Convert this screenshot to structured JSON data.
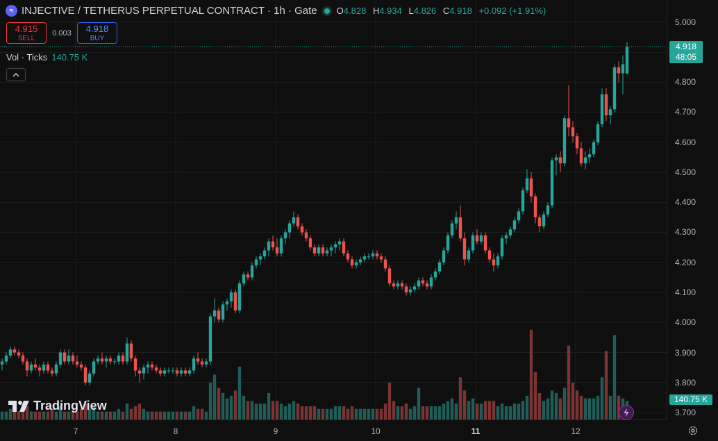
{
  "header": {
    "title": "INJECTIVE / TETHERUS PERPETUAL CONTRACT · 1h · Gate",
    "o_label": "O",
    "o": "4.828",
    "h_label": "H",
    "h": "4.934",
    "l_label": "L",
    "l": "4.826",
    "c_label": "C",
    "c": "4.918",
    "change": "+0.092 (+1.91%)"
  },
  "trade": {
    "sell_price": "4.915",
    "sell_label": "SELL",
    "spread": "0.003",
    "buy_price": "4.918",
    "buy_label": "BUY"
  },
  "volume": {
    "label": "Vol · Ticks",
    "value": "140.75 K"
  },
  "price_tag": {
    "price": "4.918",
    "countdown": "48:05"
  },
  "volume_tag": "140.75 K",
  "y_axis": [
    "5.000",
    "4.900",
    "4.800",
    "4.700",
    "4.600",
    "4.500",
    "4.400",
    "4.300",
    "4.200",
    "4.100",
    "4.000",
    "3.900",
    "3.800",
    "3.700"
  ],
  "x_axis": [
    {
      "label": "7",
      "bold": false
    },
    {
      "label": "8",
      "bold": false
    },
    {
      "label": "9",
      "bold": false
    },
    {
      "label": "10",
      "bold": false
    },
    {
      "label": "11",
      "bold": true
    },
    {
      "label": "12",
      "bold": false
    }
  ],
  "logo": "TradingView",
  "colors": {
    "up": "#26a69a",
    "down": "#ef5350",
    "up_vol": "#1f5e58",
    "down_vol": "#7a3434",
    "bg": "#0f0f0f",
    "grid": "#1e1e1e"
  },
  "chart_data": {
    "type": "candlestick",
    "interval": "1h",
    "ylim": [
      3.66,
      5.04
    ],
    "price_line": 4.918,
    "candles": [
      [
        3.86,
        3.88,
        3.84,
        3.87,
        0.3
      ],
      [
        3.87,
        3.9,
        3.86,
        3.89,
        0.3
      ],
      [
        3.89,
        3.92,
        3.88,
        3.91,
        0.4
      ],
      [
        3.91,
        3.92,
        3.89,
        3.9,
        0.3
      ],
      [
        3.9,
        3.91,
        3.88,
        3.89,
        0.3
      ],
      [
        3.89,
        3.9,
        3.86,
        3.87,
        0.4
      ],
      [
        3.87,
        3.88,
        3.82,
        3.84,
        0.5
      ],
      [
        3.84,
        3.87,
        3.83,
        3.86,
        0.3
      ],
      [
        3.86,
        3.88,
        3.84,
        3.85,
        0.3
      ],
      [
        3.85,
        3.86,
        3.82,
        3.84,
        0.3
      ],
      [
        3.84,
        3.87,
        3.83,
        3.86,
        0.3
      ],
      [
        3.86,
        3.87,
        3.83,
        3.84,
        0.3
      ],
      [
        3.84,
        3.85,
        3.82,
        3.83,
        0.4
      ],
      [
        3.83,
        3.87,
        3.82,
        3.86,
        0.3
      ],
      [
        3.86,
        3.91,
        3.85,
        3.9,
        0.5
      ],
      [
        3.9,
        3.91,
        3.86,
        3.87,
        0.3
      ],
      [
        3.87,
        3.91,
        3.86,
        3.89,
        0.3
      ],
      [
        3.89,
        3.9,
        3.86,
        3.87,
        0.3
      ],
      [
        3.87,
        3.89,
        3.85,
        3.86,
        0.3
      ],
      [
        3.86,
        3.87,
        3.84,
        3.85,
        0.4
      ],
      [
        3.85,
        3.86,
        3.79,
        3.8,
        0.6
      ],
      [
        3.8,
        3.84,
        3.79,
        3.83,
        0.4
      ],
      [
        3.83,
        3.88,
        3.82,
        3.87,
        0.5
      ],
      [
        3.87,
        3.89,
        3.86,
        3.88,
        0.3
      ],
      [
        3.88,
        3.9,
        3.86,
        3.87,
        0.3
      ],
      [
        3.87,
        3.89,
        3.85,
        3.88,
        0.3
      ],
      [
        3.88,
        3.89,
        3.86,
        3.87,
        0.3
      ],
      [
        3.87,
        3.88,
        3.86,
        3.87,
        0.3
      ],
      [
        3.87,
        3.9,
        3.86,
        3.89,
        0.4
      ],
      [
        3.89,
        3.9,
        3.86,
        3.87,
        0.3
      ],
      [
        3.87,
        3.95,
        3.86,
        3.93,
        0.6
      ],
      [
        3.93,
        3.94,
        3.87,
        3.88,
        0.4
      ],
      [
        3.88,
        3.89,
        3.82,
        3.84,
        0.5
      ],
      [
        3.84,
        3.85,
        3.8,
        3.83,
        0.6
      ],
      [
        3.83,
        3.86,
        3.81,
        3.85,
        0.4
      ],
      [
        3.85,
        3.87,
        3.83,
        3.86,
        0.3
      ],
      [
        3.86,
        3.87,
        3.84,
        3.85,
        0.3
      ],
      [
        3.85,
        3.86,
        3.83,
        3.84,
        0.3
      ],
      [
        3.84,
        3.85,
        3.82,
        3.83,
        0.3
      ],
      [
        3.83,
        3.85,
        3.82,
        3.84,
        0.3
      ],
      [
        3.84,
        3.85,
        3.83,
        3.84,
        0.3
      ],
      [
        3.84,
        3.85,
        3.83,
        3.84,
        0.3
      ],
      [
        3.84,
        3.85,
        3.82,
        3.83,
        0.3
      ],
      [
        3.83,
        3.85,
        3.82,
        3.84,
        0.3
      ],
      [
        3.84,
        3.85,
        3.82,
        3.83,
        0.3
      ],
      [
        3.83,
        3.85,
        3.82,
        3.84,
        0.3
      ],
      [
        3.84,
        3.89,
        3.83,
        3.88,
        0.5
      ],
      [
        3.88,
        3.9,
        3.86,
        3.87,
        0.4
      ],
      [
        3.87,
        3.88,
        3.85,
        3.86,
        0.4
      ],
      [
        3.86,
        3.88,
        3.85,
        3.87,
        0.3
      ],
      [
        3.87,
        4.03,
        3.86,
        4.02,
        1.4
      ],
      [
        4.02,
        4.08,
        4.0,
        4.04,
        1.7
      ],
      [
        4.04,
        4.05,
        4.0,
        4.01,
        1.2
      ],
      [
        4.01,
        4.07,
        4.0,
        4.06,
        1.0
      ],
      [
        4.06,
        4.08,
        4.04,
        4.07,
        0.8
      ],
      [
        4.07,
        4.11,
        4.05,
        4.1,
        0.9
      ],
      [
        4.1,
        4.11,
        4.03,
        4.04,
        1.1
      ],
      [
        4.04,
        4.14,
        4.03,
        4.13,
        2.0
      ],
      [
        4.13,
        4.17,
        4.12,
        4.16,
        0.9
      ],
      [
        4.16,
        4.17,
        4.14,
        4.15,
        0.7
      ],
      [
        4.15,
        4.2,
        4.14,
        4.19,
        0.7
      ],
      [
        4.19,
        4.22,
        4.18,
        4.21,
        0.6
      ],
      [
        4.21,
        4.23,
        4.19,
        4.22,
        0.6
      ],
      [
        4.22,
        4.25,
        4.21,
        4.24,
        0.6
      ],
      [
        4.24,
        4.28,
        4.22,
        4.27,
        1.0
      ],
      [
        4.27,
        4.29,
        4.24,
        4.25,
        0.7
      ],
      [
        4.25,
        4.28,
        4.22,
        4.23,
        0.7
      ],
      [
        4.23,
        4.29,
        4.22,
        4.28,
        0.6
      ],
      [
        4.28,
        4.31,
        4.26,
        4.3,
        0.5
      ],
      [
        4.3,
        4.34,
        4.28,
        4.33,
        0.6
      ],
      [
        4.33,
        4.37,
        4.32,
        4.35,
        0.7
      ],
      [
        4.35,
        4.36,
        4.31,
        4.32,
        0.6
      ],
      [
        4.32,
        4.33,
        4.29,
        4.3,
        0.5
      ],
      [
        4.3,
        4.31,
        4.27,
        4.28,
        0.5
      ],
      [
        4.28,
        4.29,
        4.24,
        4.25,
        0.5
      ],
      [
        4.25,
        4.26,
        4.22,
        4.23,
        0.5
      ],
      [
        4.23,
        4.26,
        4.22,
        4.25,
        0.4
      ],
      [
        4.25,
        4.26,
        4.22,
        4.23,
        0.4
      ],
      [
        4.23,
        4.25,
        4.22,
        4.24,
        0.4
      ],
      [
        4.24,
        4.26,
        4.22,
        4.25,
        0.4
      ],
      [
        4.25,
        4.27,
        4.23,
        4.26,
        0.5
      ],
      [
        4.26,
        4.28,
        4.24,
        4.27,
        0.5
      ],
      [
        4.27,
        4.28,
        4.22,
        4.23,
        0.5
      ],
      [
        4.23,
        4.24,
        4.2,
        4.21,
        0.4
      ],
      [
        4.21,
        4.22,
        4.18,
        4.19,
        0.5
      ],
      [
        4.19,
        4.21,
        4.18,
        4.2,
        0.4
      ],
      [
        4.2,
        4.22,
        4.19,
        4.21,
        0.4
      ],
      [
        4.21,
        4.23,
        4.2,
        4.22,
        0.4
      ],
      [
        4.22,
        4.23,
        4.21,
        4.22,
        0.4
      ],
      [
        4.22,
        4.24,
        4.21,
        4.23,
        0.4
      ],
      [
        4.23,
        4.24,
        4.21,
        4.22,
        0.4
      ],
      [
        4.22,
        4.23,
        4.2,
        4.21,
        0.4
      ],
      [
        4.21,
        4.22,
        4.17,
        4.18,
        0.6
      ],
      [
        4.18,
        4.19,
        4.12,
        4.13,
        1.4
      ],
      [
        4.13,
        4.14,
        4.11,
        4.12,
        0.7
      ],
      [
        4.12,
        4.14,
        4.11,
        4.13,
        0.5
      ],
      [
        4.13,
        4.14,
        4.11,
        4.12,
        0.5
      ],
      [
        4.12,
        4.13,
        4.09,
        4.1,
        0.6
      ],
      [
        4.1,
        4.12,
        4.09,
        4.11,
        0.4
      ],
      [
        4.11,
        4.13,
        4.1,
        4.12,
        0.5
      ],
      [
        4.12,
        4.15,
        4.11,
        4.14,
        1.2
      ],
      [
        4.14,
        4.15,
        4.12,
        4.13,
        0.5
      ],
      [
        4.13,
        4.14,
        4.11,
        4.12,
        0.5
      ],
      [
        4.12,
        4.16,
        4.11,
        4.15,
        0.5
      ],
      [
        4.15,
        4.18,
        4.14,
        4.17,
        0.5
      ],
      [
        4.17,
        4.21,
        4.16,
        4.2,
        0.5
      ],
      [
        4.2,
        4.25,
        4.19,
        4.24,
        0.6
      ],
      [
        4.24,
        4.3,
        4.23,
        4.29,
        0.7
      ],
      [
        4.29,
        4.34,
        4.28,
        4.33,
        0.8
      ],
      [
        4.33,
        4.37,
        4.31,
        4.35,
        0.6
      ],
      [
        4.35,
        4.39,
        4.27,
        4.28,
        1.6
      ],
      [
        4.28,
        4.3,
        4.19,
        4.21,
        1.1
      ],
      [
        4.21,
        4.25,
        4.2,
        4.24,
        0.7
      ],
      [
        4.24,
        4.3,
        4.23,
        4.29,
        0.8
      ],
      [
        4.29,
        4.31,
        4.26,
        4.27,
        0.6
      ],
      [
        4.27,
        4.3,
        4.26,
        4.29,
        0.6
      ],
      [
        4.29,
        4.3,
        4.23,
        4.24,
        0.7
      ],
      [
        4.24,
        4.25,
        4.2,
        4.21,
        0.7
      ],
      [
        4.21,
        4.23,
        4.17,
        4.19,
        0.7
      ],
      [
        4.19,
        4.23,
        4.18,
        4.22,
        0.5
      ],
      [
        4.22,
        4.29,
        4.21,
        4.28,
        0.6
      ],
      [
        4.28,
        4.3,
        4.26,
        4.29,
        0.5
      ],
      [
        4.29,
        4.32,
        4.28,
        4.31,
        0.5
      ],
      [
        4.31,
        4.35,
        4.3,
        4.34,
        0.6
      ],
      [
        4.34,
        4.38,
        4.33,
        4.37,
        0.6
      ],
      [
        4.37,
        4.45,
        4.36,
        4.44,
        0.7
      ],
      [
        4.44,
        4.51,
        4.43,
        4.48,
        0.9
      ],
      [
        4.48,
        4.5,
        4.4,
        4.42,
        3.4
      ],
      [
        4.42,
        4.43,
        4.33,
        4.35,
        1.8
      ],
      [
        4.35,
        4.36,
        4.3,
        4.32,
        1.0
      ],
      [
        4.32,
        4.37,
        4.31,
        4.36,
        0.7
      ],
      [
        4.36,
        4.4,
        4.35,
        4.39,
        0.8
      ],
      [
        4.39,
        4.55,
        4.38,
        4.54,
        1.1
      ],
      [
        4.54,
        4.56,
        4.49,
        4.55,
        1.0
      ],
      [
        4.55,
        4.57,
        4.5,
        4.53,
        0.8
      ],
      [
        4.53,
        4.69,
        4.52,
        4.68,
        1.2
      ],
      [
        4.68,
        4.79,
        4.62,
        4.65,
        2.8
      ],
      [
        4.65,
        4.67,
        4.6,
        4.62,
        1.4
      ],
      [
        4.62,
        4.63,
        4.56,
        4.58,
        1.1
      ],
      [
        4.58,
        4.6,
        4.52,
        4.53,
        0.9
      ],
      [
        4.53,
        4.57,
        4.51,
        4.55,
        0.8
      ],
      [
        4.55,
        4.58,
        4.53,
        4.56,
        0.8
      ],
      [
        4.56,
        4.61,
        4.55,
        4.6,
        0.8
      ],
      [
        4.6,
        4.67,
        4.59,
        4.66,
        0.9
      ],
      [
        4.66,
        4.78,
        4.65,
        4.76,
        1.6
      ],
      [
        4.76,
        4.78,
        4.67,
        4.69,
        2.6
      ],
      [
        4.69,
        4.72,
        4.66,
        4.71,
        0.9
      ],
      [
        4.71,
        4.86,
        4.7,
        4.85,
        3.2
      ],
      [
        4.85,
        4.87,
        4.8,
        4.83,
        0.9
      ],
      [
        4.83,
        4.89,
        4.76,
        4.86,
        0.8
      ],
      [
        4.83,
        4.934,
        4.826,
        4.918,
        0.7
      ]
    ]
  }
}
